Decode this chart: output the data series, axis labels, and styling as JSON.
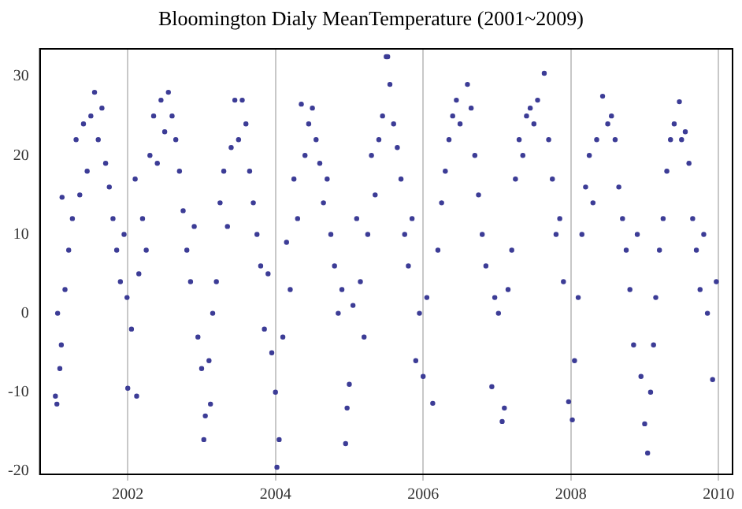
{
  "chart_data": {
    "type": "scatter",
    "title": "Bloomington Dialy MeanTemperature (2001~2009)",
    "x": [
      2001.02,
      2001.04,
      2001.05,
      2001.08,
      2001.1,
      2001.11,
      2001.15,
      2001.2,
      2001.25,
      2001.3,
      2001.35,
      2001.4,
      2001.45,
      2001.5,
      2001.55,
      2001.6,
      2001.65,
      2001.7,
      2001.75,
      2001.8,
      2001.85,
      2001.9,
      2001.95,
      2001.99,
      2002.0,
      2002.05,
      2002.1,
      2002.12,
      2002.15,
      2002.2,
      2002.25,
      2002.3,
      2002.35,
      2002.4,
      2002.45,
      2002.5,
      2002.55,
      2002.6,
      2002.65,
      2002.7,
      2002.75,
      2002.8,
      2002.85,
      2002.9,
      2002.95,
      2003.0,
      2003.03,
      2003.05,
      2003.1,
      2003.12,
      2003.15,
      2003.2,
      2003.25,
      2003.3,
      2003.35,
      2003.4,
      2003.45,
      2003.5,
      2003.55,
      2003.6,
      2003.65,
      2003.7,
      2003.75,
      2003.8,
      2003.85,
      2003.9,
      2003.95,
      2004.0,
      2004.02,
      2004.05,
      2004.1,
      2004.15,
      2004.2,
      2004.25,
      2004.3,
      2004.35,
      2004.4,
      2004.45,
      2004.5,
      2004.55,
      2004.6,
      2004.65,
      2004.7,
      2004.75,
      2004.8,
      2004.85,
      2004.9,
      2004.95,
      2004.97,
      2005.0,
      2005.05,
      2005.1,
      2005.15,
      2005.2,
      2005.25,
      2005.3,
      2005.35,
      2005.4,
      2005.45,
      2005.5,
      2005.52,
      2005.55,
      2005.6,
      2005.65,
      2005.7,
      2005.75,
      2005.8,
      2005.85,
      2005.9,
      2005.95,
      2006.0,
      2006.05,
      2006.13,
      2006.2,
      2006.25,
      2006.3,
      2006.35,
      2006.4,
      2006.45,
      2006.5,
      2006.6,
      2006.65,
      2006.7,
      2006.75,
      2006.8,
      2006.85,
      2006.93,
      2006.97,
      2007.02,
      2007.07,
      2007.1,
      2007.15,
      2007.2,
      2007.25,
      2007.3,
      2007.35,
      2007.4,
      2007.45,
      2007.5,
      2007.55,
      2007.64,
      2007.7,
      2007.75,
      2007.8,
      2007.85,
      2007.9,
      2007.97,
      2008.02,
      2008.05,
      2008.1,
      2008.15,
      2008.2,
      2008.25,
      2008.3,
      2008.35,
      2008.43,
      2008.5,
      2008.55,
      2008.6,
      2008.65,
      2008.7,
      2008.75,
      2008.8,
      2008.85,
      2008.9,
      2008.95,
      2009.0,
      2009.04,
      2009.08,
      2009.12,
      2009.15,
      2009.2,
      2009.25,
      2009.3,
      2009.35,
      2009.4,
      2009.47,
      2009.5,
      2009.55,
      2009.6,
      2009.65,
      2009.7,
      2009.75,
      2009.8,
      2009.85,
      2009.92,
      2009.97
    ],
    "values": [
      -10.5,
      -11.5,
      0,
      -7,
      -4,
      14.7,
      3,
      8,
      12,
      22,
      15,
      24,
      18,
      25,
      28,
      22,
      26,
      19,
      16,
      12,
      8,
      4,
      10,
      2,
      -9.5,
      -2,
      17,
      -10.5,
      5,
      12,
      8,
      20,
      25,
      19,
      27,
      23,
      28,
      25,
      22,
      18,
      13,
      8,
      4,
      11,
      -3,
      -7,
      -16,
      -13,
      -6,
      -11.5,
      0,
      4,
      14,
      18,
      11,
      21,
      27,
      22,
      27,
      24,
      18,
      14,
      10,
      6,
      -2,
      5,
      -5,
      -10,
      -19.5,
      -16,
      -3,
      9,
      3,
      17,
      12,
      26.5,
      20,
      24,
      26,
      22,
      19,
      14,
      17,
      10,
      6,
      0,
      3,
      -16.5,
      -12,
      -9,
      1,
      12,
      4,
      -3,
      10,
      20,
      15,
      22,
      25,
      32.5,
      32.5,
      29,
      24,
      21,
      17,
      10,
      6,
      12,
      -6,
      0,
      -8,
      2,
      -11.4,
      8,
      14,
      18,
      22,
      25,
      27,
      24,
      29,
      26,
      20,
      15,
      10,
      6,
      -9.3,
      2,
      0,
      -13.7,
      -12,
      3,
      8,
      17,
      22,
      20,
      25,
      26,
      24,
      27,
      30.4,
      22,
      17,
      10,
      12,
      4,
      -11.2,
      -13.5,
      -6,
      2,
      10,
      16,
      20,
      14,
      22,
      27.5,
      24,
      25,
      22,
      16,
      12,
      8,
      3,
      -4,
      10,
      -8,
      -14,
      -17.7,
      -10,
      -4,
      2,
      8,
      12,
      18,
      22,
      24,
      26.8,
      22,
      23,
      19,
      12,
      8,
      3,
      10,
      0,
      -8.4,
      4
    ],
    "color": "#3c3c96",
    "marker": "circle",
    "grid": "x",
    "xlim": [
      2000.81,
      2010.19
    ],
    "xticks": [
      2002,
      2004,
      2006,
      2008,
      2010
    ],
    "ylim": [
      -20.4,
      33.5
    ],
    "yticks": [
      -20,
      -10,
      0,
      10,
      20,
      30
    ]
  }
}
